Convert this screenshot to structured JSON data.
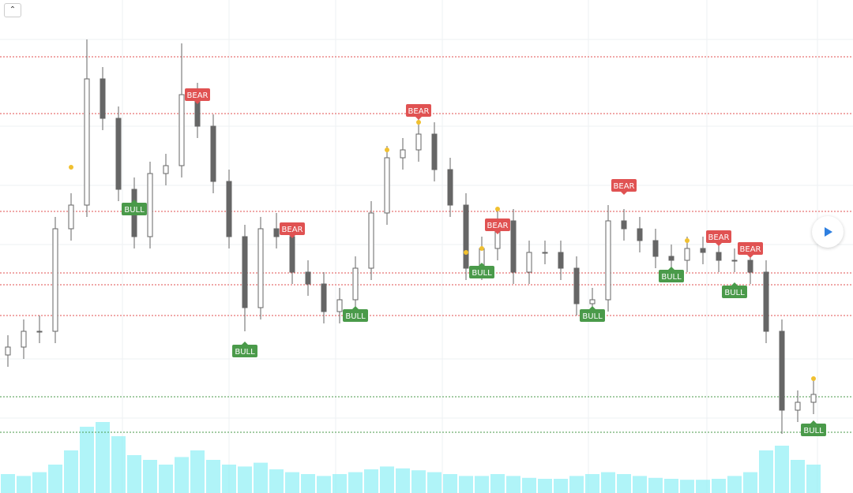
{
  "chart_data": {
    "type": "candlestick",
    "xlim": [
      -0.5,
      53.5
    ],
    "ylim": [
      0,
      120
    ],
    "volume_ylim": [
      0,
      100
    ],
    "open": [
      30,
      32,
      36,
      36,
      62,
      68,
      100,
      90,
      72,
      60,
      76,
      78,
      96,
      88,
      74,
      60,
      42,
      62,
      60,
      51,
      48,
      41,
      44,
      52,
      66,
      80,
      82,
      86,
      77,
      68,
      52,
      57,
      64,
      51,
      56,
      56,
      52,
      43,
      44,
      64,
      62,
      59,
      55,
      54,
      57,
      56,
      54,
      54,
      51,
      36,
      16,
      18
    ],
    "high": [
      35,
      39,
      40,
      65,
      71,
      110,
      103,
      93,
      75,
      79,
      81,
      109,
      99,
      91,
      77,
      63,
      65,
      66,
      63,
      54,
      51,
      47,
      55,
      69,
      83,
      85,
      93,
      89,
      80,
      71,
      60,
      67,
      67,
      59,
      59,
      59,
      55,
      47,
      68,
      67,
      65,
      62,
      58,
      60,
      60,
      59,
      57,
      57,
      54,
      39,
      21,
      24
    ],
    "low": [
      27,
      29,
      33,
      33,
      59,
      65,
      87,
      69,
      57,
      57,
      73,
      75,
      85,
      71,
      57,
      36,
      39,
      57,
      48,
      45,
      38,
      38,
      41,
      49,
      63,
      77,
      79,
      74,
      65,
      49,
      49,
      54,
      48,
      48,
      53,
      49,
      40,
      40,
      41,
      59,
      56,
      52,
      51,
      51,
      53,
      51,
      51,
      48,
      33,
      10,
      13,
      15
    ],
    "close": [
      32,
      36,
      36,
      62,
      68,
      100,
      90,
      72,
      60,
      76,
      78,
      96,
      88,
      74,
      60,
      42,
      62,
      60,
      51,
      48,
      41,
      44,
      52,
      66,
      80,
      82,
      86,
      77,
      68,
      52,
      57,
      64,
      51,
      56,
      56,
      52,
      43,
      44,
      64,
      62,
      59,
      55,
      54,
      57,
      56,
      54,
      54,
      51,
      36,
      16,
      18,
      20
    ],
    "volume": [
      20,
      18,
      22,
      30,
      45,
      70,
      75,
      60,
      40,
      35,
      30,
      38,
      45,
      35,
      30,
      28,
      32,
      25,
      22,
      20,
      18,
      20,
      22,
      25,
      28,
      26,
      24,
      22,
      20,
      18,
      18,
      20,
      18,
      16,
      15,
      15,
      18,
      20,
      22,
      20,
      18,
      16,
      15,
      14,
      14,
      15,
      18,
      22,
      45,
      50,
      35,
      30
    ],
    "candle_color": "#666666",
    "volume_color": "#8ef0f5",
    "levels": [
      {
        "value": 105.6,
        "color": "#e05252"
      },
      {
        "value": 91.2,
        "color": "#e05252"
      },
      {
        "value": 66.4,
        "color": "#e05252"
      },
      {
        "value": 50.8,
        "color": "#e05252"
      },
      {
        "value": 47.8,
        "color": "#e05252"
      },
      {
        "value": 40,
        "color": "#e05252"
      },
      {
        "value": 19.4,
        "color": "#4a9a4a"
      },
      {
        "value": 10.4,
        "color": "#4a9a4a"
      }
    ],
    "signals": [
      {
        "label": "BULL",
        "index": 8,
        "value": 67,
        "color": "#4a9a4a"
      },
      {
        "label": "BEAR",
        "index": 12,
        "value": 96,
        "color": "#e05252"
      },
      {
        "label": "BULL",
        "index": 15,
        "value": 31,
        "color": "#4a9a4a"
      },
      {
        "label": "BEAR",
        "index": 18,
        "value": 62,
        "color": "#e05252"
      },
      {
        "label": "BULL",
        "index": 22,
        "value": 40,
        "color": "#4a9a4a"
      },
      {
        "label": "BEAR",
        "index": 26,
        "value": 92,
        "color": "#e05252"
      },
      {
        "label": "BULL",
        "index": 30,
        "value": 51,
        "color": "#4a9a4a"
      },
      {
        "label": "BEAR",
        "index": 31,
        "value": 63,
        "color": "#e05252"
      },
      {
        "label": "BULL",
        "index": 37,
        "value": 40,
        "color": "#4a9a4a"
      },
      {
        "label": "BEAR",
        "index": 39,
        "value": 73,
        "color": "#e05252"
      },
      {
        "label": "BULL",
        "index": 42,
        "value": 50,
        "color": "#4a9a4a"
      },
      {
        "label": "BEAR",
        "index": 45,
        "value": 60,
        "color": "#e05252"
      },
      {
        "label": "BULL",
        "index": 46,
        "value": 46,
        "color": "#4a9a4a"
      },
      {
        "label": "BEAR",
        "index": 47,
        "value": 57,
        "color": "#e05252"
      },
      {
        "label": "BULL",
        "index": 51,
        "value": 11,
        "color": "#4a9a4a"
      }
    ],
    "markers": [
      {
        "index": 4,
        "value": 77.6
      },
      {
        "index": 24,
        "value": 82
      },
      {
        "index": 26,
        "value": 89
      },
      {
        "index": 29,
        "value": 56
      },
      {
        "index": 30,
        "value": 57
      },
      {
        "index": 31,
        "value": 67
      },
      {
        "index": 43,
        "value": 59
      },
      {
        "index": 51,
        "value": 24
      }
    ],
    "marker_color": "#f0c030"
  }
}
